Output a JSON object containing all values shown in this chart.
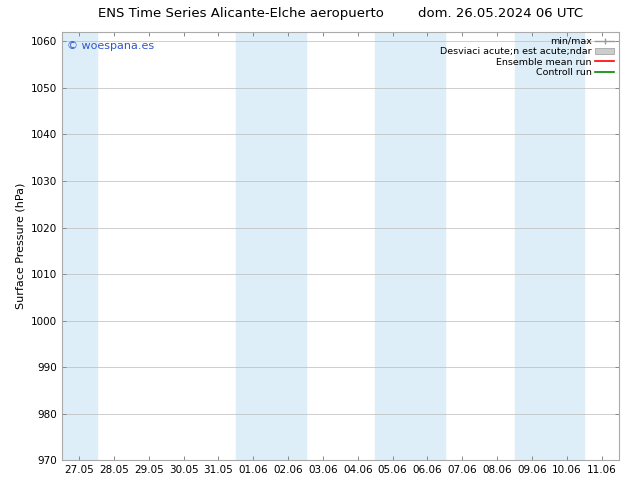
{
  "title_left": "ENS Time Series Alicante-Elche aeropuerto",
  "title_right": "dom. 26.05.2024 06 UTC",
  "ylabel": "Surface Pressure (hPa)",
  "ylim": [
    970,
    1062
  ],
  "yticks": [
    970,
    980,
    990,
    1000,
    1010,
    1020,
    1030,
    1040,
    1050,
    1060
  ],
  "x_labels": [
    "27.05",
    "28.05",
    "29.05",
    "30.05",
    "31.05",
    "01.06",
    "02.06",
    "03.06",
    "04.06",
    "05.06",
    "06.06",
    "07.06",
    "08.06",
    "09.06",
    "10.06",
    "11.06"
  ],
  "shaded_columns": [
    0,
    5,
    6,
    9,
    10,
    13,
    14
  ],
  "shade_color": "#ddeef8",
  "background_color": "#ffffff",
  "plot_bg_color": "#ffffff",
  "watermark": "© woespana.es",
  "legend_line1": "min/max",
  "legend_line2": "Desviaci acute;n est acute;ndar",
  "legend_line3": "Ensemble mean run",
  "legend_line4": "Controll run",
  "legend_color2": "#ff0000",
  "legend_color3": "#008800",
  "title_fontsize": 9.5,
  "axis_label_fontsize": 8,
  "tick_fontsize": 7.5,
  "watermark_fontsize": 8
}
